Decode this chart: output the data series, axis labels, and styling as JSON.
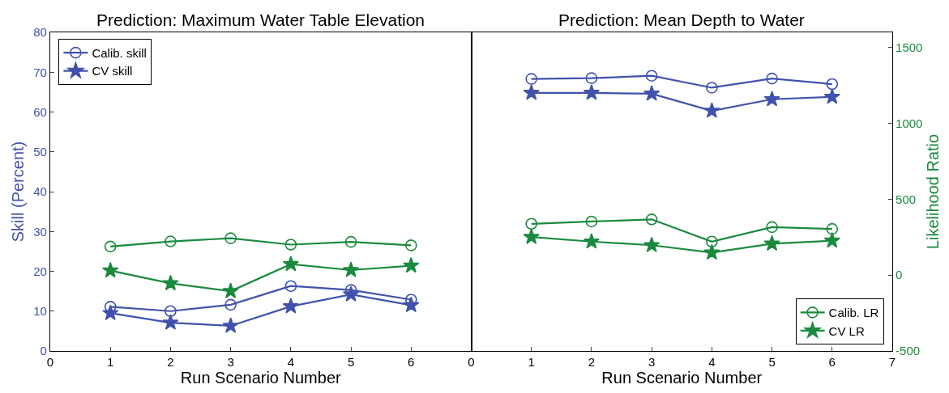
{
  "chart_data": [
    {
      "type": "line",
      "title": "Prediction: Maximum Water Table Elevation",
      "xlabel": "Run Scenario Number",
      "ylabel": "Skill (Percent)",
      "x": [
        1,
        2,
        3,
        4,
        5,
        6
      ],
      "xlim": [
        0,
        7
      ],
      "xticks": [
        0,
        1,
        2,
        3,
        4,
        5,
        6
      ],
      "ylim": [
        0,
        80
      ],
      "yticks": [
        0,
        10,
        20,
        30,
        40,
        50,
        60,
        70,
        80
      ],
      "y2lim": [
        -500,
        1600
      ],
      "tick_labels": [
        "x",
        "y"
      ],
      "legend": "top left",
      "series": [
        {
          "name": "Calib. skill",
          "color": "#4152ad",
          "marker": "circle",
          "values": [
            11.1,
            10.0,
            11.6,
            16.3,
            15.3,
            12.9
          ]
        },
        {
          "name": "CV skill",
          "color": "#4152ad",
          "marker": "star",
          "values": [
            9.5,
            7.1,
            6.3,
            11.2,
            14.2,
            11.5
          ]
        },
        {
          "color": "#1b8a3e",
          "marker": "circle",
          "axis": "y2",
          "values": [
            188,
            222,
            243,
            201,
            219,
            196
          ]
        },
        {
          "color": "#1b8a3e",
          "marker": "star",
          "axis": "y2",
          "values": [
            30,
            -54,
            -106,
            72,
            33,
            62
          ]
        }
      ]
    },
    {
      "type": "line",
      "title": "Prediction: Mean Depth to Water",
      "xlabel": "Run Scenario Number",
      "y2label": "Likelihood Ratio",
      "x": [
        1,
        2,
        3,
        4,
        5,
        6
      ],
      "xlim": [
        0,
        7
      ],
      "xticks": [
        0,
        1,
        2,
        3,
        4,
        5,
        6,
        7
      ],
      "ylim": [
        0,
        80
      ],
      "y2lim": [
        -500,
        1600
      ],
      "y2ticks": [
        -500,
        0,
        500,
        1000,
        1500
      ],
      "tick_labels": [
        "x",
        "y2"
      ],
      "legend": "bottom right",
      "series": [
        {
          "color": "#4152ad",
          "marker": "circle",
          "values": [
            68.3,
            68.5,
            69.1,
            66.1,
            68.4,
            67.0
          ]
        },
        {
          "color": "#4152ad",
          "marker": "star",
          "values": [
            64.8,
            64.8,
            64.6,
            60.3,
            63.2,
            63.8
          ]
        },
        {
          "name": "Calib. LR",
          "color": "#1b8a3e",
          "marker": "circle",
          "axis": "y2",
          "values": [
            338,
            353,
            367,
            221,
            316,
            304
          ]
        },
        {
          "name": "CV LR",
          "color": "#1b8a3e",
          "marker": "star",
          "axis": "y2",
          "values": [
            251,
            221,
            197,
            148,
            207,
            227
          ]
        }
      ]
    }
  ]
}
